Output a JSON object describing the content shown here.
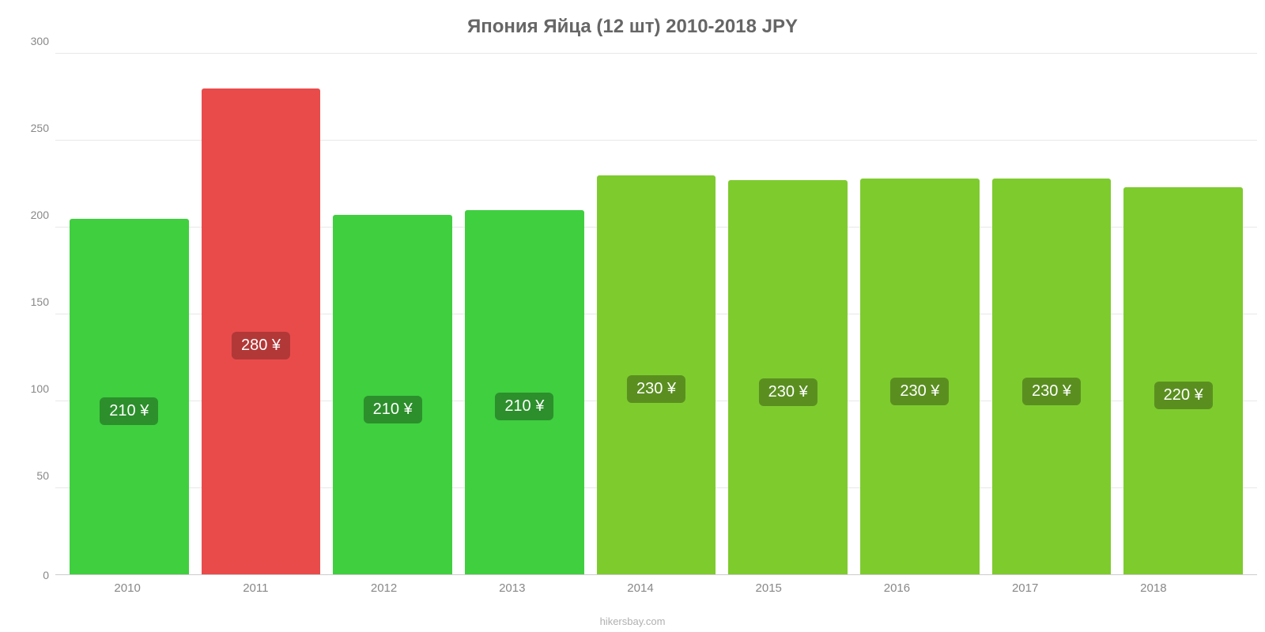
{
  "chart": {
    "type": "bar",
    "title": "Япония Яйца (12 шт) 2010-2018 JPY",
    "title_fontsize": 24,
    "title_color": "#666666",
    "background_color": "#ffffff",
    "grid_color": "#e8e8e8",
    "axis_color": "#cccccc",
    "label_color": "#888888",
    "label_fontsize": 14,
    "ylim": [
      0,
      300
    ],
    "ytick_step": 50,
    "yticks": [
      0,
      50,
      100,
      150,
      200,
      250,
      300
    ],
    "categories": [
      "2010",
      "2011",
      "2012",
      "2013",
      "2014",
      "2015",
      "2016",
      "2017",
      "2018"
    ],
    "values": [
      205,
      280,
      207,
      210,
      230,
      227,
      228,
      228,
      223
    ],
    "bar_colors": [
      "#3fcf3f",
      "#e94b4b",
      "#3fcf3f",
      "#3fcf3f",
      "#7ecb2e",
      "#7ecb2e",
      "#7ecb2e",
      "#7ecb2e",
      "#7ecb2e"
    ],
    "bar_labels": [
      "210 ¥",
      "280 ¥",
      "210 ¥",
      "210 ¥",
      "230 ¥",
      "230 ¥",
      "230 ¥",
      "230 ¥",
      "220 ¥"
    ],
    "bar_label_bg": [
      "#2c8f2c",
      "#b23838",
      "#2c8f2c",
      "#2c8f2c",
      "#5a8f20",
      "#5a8f20",
      "#5a8f20",
      "#5a8f20",
      "#5a8f20"
    ],
    "bar_label_fontsize": 20,
    "bar_label_color": "#ffffff",
    "bar_width": 0.88,
    "footer": "hikersbay.com",
    "footer_color": "#b0b0b0"
  }
}
